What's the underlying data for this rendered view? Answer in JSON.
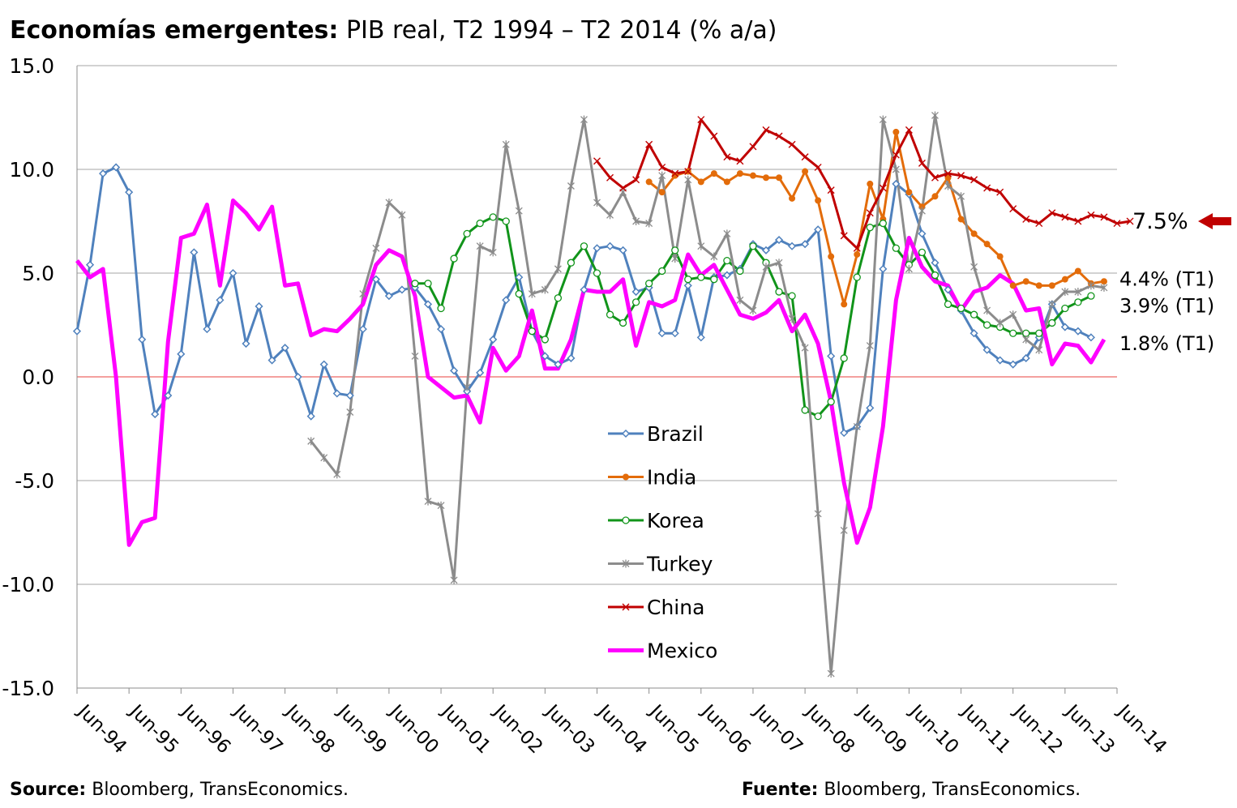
{
  "header": {
    "title_bold": "Economías emergentes:",
    "title_rest": " PIB real, T2 1994 – T2 2014 (% a/a)"
  },
  "footer": {
    "source_left_label": "Source:",
    "source_left_text": " Bloomberg, TransEconomics.",
    "source_right_label": "Fuente:",
    "source_right_text": " Bloomberg, TransEconomics."
  },
  "chart_data": {
    "type": "line",
    "x_start": "Jun-94",
    "x_step": "quarter",
    "x_ticks": [
      "Jun-94",
      "Jun-95",
      "Jun-96",
      "Jun-97",
      "Jun-98",
      "Jun-99",
      "Jun-00",
      "Jun-01",
      "Jun-02",
      "Jun-03",
      "Jun-04",
      "Jun-05",
      "Jun-06",
      "Jun-07",
      "Jun-08",
      "Jun-09",
      "Jun-10",
      "Jun-11",
      "Jun-12",
      "Jun-13",
      "Jun-14"
    ],
    "ylim": [
      -15,
      15
    ],
    "y_ticks": [
      "15.0",
      "10.0",
      "5.0",
      "0.0",
      "-5.0",
      "-10.0",
      "-15.0"
    ],
    "y_tick_values": [
      15,
      10,
      5,
      0,
      -5,
      -10,
      -15
    ],
    "grid": true,
    "zero_line_color": "#e8403c",
    "legend_position": "center",
    "series": [
      {
        "name": "Brazil",
        "color": "#4f81bd",
        "marker": "diamond",
        "start": 0,
        "values": [
          2.2,
          5.4,
          9.8,
          10.1,
          8.9,
          1.8,
          -1.8,
          -0.9,
          1.1,
          6.0,
          2.3,
          3.7,
          5.0,
          1.6,
          3.4,
          0.8,
          1.4,
          0.0,
          -1.9,
          0.6,
          -0.8,
          -0.9,
          2.3,
          4.7,
          3.9,
          4.2,
          4.3,
          3.5,
          2.3,
          0.3,
          -0.7,
          0.2,
          1.8,
          3.7,
          4.8,
          2.2,
          1.0,
          0.6,
          0.9,
          4.2,
          6.2,
          6.3,
          6.1,
          4.1,
          4.3,
          2.1,
          2.1,
          4.4,
          1.9,
          4.8,
          4.9,
          5.2,
          6.4,
          6.1,
          6.6,
          6.3,
          6.4,
          7.1,
          1.0,
          -2.7,
          -2.4,
          -1.5,
          5.2,
          9.3,
          8.8,
          6.9,
          5.5,
          4.2,
          3.2,
          2.1,
          1.3,
          0.8,
          0.6,
          0.9,
          1.9,
          3.5,
          2.4,
          2.2,
          1.9
        ]
      },
      {
        "name": "India",
        "color": "#e36c0a",
        "marker": "circle",
        "start": 44,
        "values": [
          9.4,
          8.9,
          9.7,
          9.9,
          9.4,
          9.8,
          9.4,
          9.8,
          9.7,
          9.6,
          9.6,
          8.6,
          9.9,
          8.5,
          5.8,
          3.5,
          5.9,
          9.3,
          7.6,
          11.8,
          8.9,
          8.2,
          8.7,
          9.6,
          7.6,
          6.9,
          6.4,
          5.8,
          4.4,
          4.6,
          4.4,
          4.4,
          4.7,
          5.1,
          4.5,
          4.6
        ]
      },
      {
        "name": "Korea",
        "color": "#11941a",
        "marker": "circle-open",
        "start": 26,
        "values": [
          4.5,
          4.5,
          3.3,
          5.7,
          6.9,
          7.4,
          7.7,
          7.5,
          4.0,
          2.2,
          1.8,
          3.8,
          5.5,
          6.3,
          5.0,
          3.0,
          2.6,
          3.6,
          4.5,
          5.1,
          6.1,
          4.7,
          4.8,
          4.7,
          5.6,
          5.1,
          6.3,
          5.5,
          4.1,
          3.9,
          -1.6,
          -1.9,
          -1.2,
          0.9,
          4.8,
          7.2,
          7.4,
          6.2,
          5.4,
          6.0,
          4.9,
          3.5,
          3.3,
          3.0,
          2.5,
          2.4,
          2.1,
          2.1,
          2.1,
          2.6,
          3.3,
          3.6,
          3.9
        ]
      },
      {
        "name": "Turkey",
        "color": "#8c8c8c",
        "marker": "star",
        "start": 18,
        "values": [
          -3.1,
          -3.9,
          -4.7,
          -1.7,
          4.0,
          6.2,
          8.4,
          7.8,
          1.0,
          -6.0,
          -6.2,
          -9.8,
          -0.5,
          6.3,
          6.0,
          11.2,
          8.0,
          4.0,
          4.2,
          5.2,
          9.2,
          12.4,
          8.4,
          7.8,
          8.9,
          7.5,
          7.4,
          9.7,
          5.7,
          9.5,
          6.3,
          5.8,
          6.9,
          3.7,
          3.2,
          5.3,
          5.5,
          2.8,
          1.4,
          -6.6,
          -14.3,
          -7.4,
          -2.4,
          1.5,
          12.4,
          10.0,
          5.2,
          8.0,
          12.6,
          9.2,
          8.7,
          5.3,
          3.2,
          2.6,
          3.0,
          1.8,
          1.3,
          3.5,
          4.1,
          4.1,
          4.4,
          4.3
        ]
      },
      {
        "name": "China",
        "color": "#c00000",
        "marker": "x",
        "start": 40,
        "values": [
          10.4,
          9.6,
          9.1,
          9.5,
          11.2,
          10.1,
          9.8,
          9.9,
          12.4,
          11.6,
          10.6,
          10.4,
          11.1,
          11.9,
          11.6,
          11.2,
          10.6,
          10.1,
          9.0,
          6.8,
          6.2,
          7.9,
          9.1,
          10.7,
          11.9,
          10.3,
          9.6,
          9.8,
          9.7,
          9.5,
          9.1,
          8.9,
          8.1,
          7.6,
          7.4,
          7.9,
          7.7,
          7.5,
          7.8,
          7.7,
          7.4,
          7.5
        ]
      },
      {
        "name": "Mexico",
        "color": "#ff00ff",
        "marker": "none",
        "start": 0,
        "values": [
          5.6,
          4.8,
          5.2,
          0.0,
          -8.1,
          -7.0,
          -6.8,
          1.7,
          6.7,
          6.9,
          8.3,
          4.4,
          8.5,
          7.9,
          7.1,
          8.2,
          4.4,
          4.5,
          2.0,
          2.3,
          2.2,
          2.8,
          3.5,
          5.4,
          6.1,
          5.8,
          3.9,
          0.0,
          -0.5,
          -1.0,
          -0.9,
          -2.2,
          1.4,
          0.3,
          1.0,
          3.2,
          0.4,
          0.4,
          1.8,
          4.2,
          4.1,
          4.1,
          4.7,
          1.5,
          3.6,
          3.4,
          3.7,
          5.9,
          4.9,
          5.4,
          4.2,
          3.0,
          2.8,
          3.1,
          3.7,
          2.2,
          3.0,
          1.6,
          -1.2,
          -5.1,
          -8.0,
          -6.3,
          -2.4,
          3.7,
          6.7,
          5.3,
          4.6,
          4.4,
          3.2,
          4.1,
          4.3,
          4.9,
          4.5,
          3.2,
          3.3,
          0.6,
          1.6,
          1.5,
          0.7,
          1.8
        ]
      }
    ],
    "annotations": [
      {
        "text": "7.5%",
        "y": 7.5,
        "arrow": true,
        "arrow_color": "#c00000"
      },
      {
        "text": "4.4% (T1)",
        "y": 4.75
      },
      {
        "text": "3.9% (T1)",
        "y": 3.45
      },
      {
        "text": "1.8% (T1)",
        "y": 1.65
      }
    ]
  }
}
